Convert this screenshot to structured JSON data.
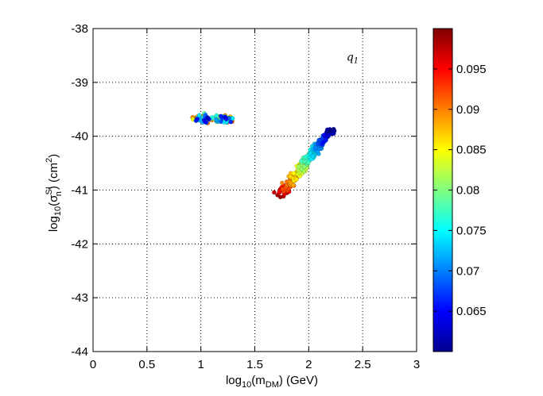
{
  "chart_data": {
    "type": "scatter",
    "xaxis": {
      "min": 0,
      "max": 3,
      "ticks": [
        0,
        0.5,
        1,
        1.5,
        2,
        2.5,
        3
      ],
      "tick_labels": [
        "0",
        "0.5",
        "1",
        "1.5",
        "2",
        "2.5",
        "3"
      ]
    },
    "yaxis": {
      "min": -44,
      "max": -38,
      "ticks": [
        -44,
        -43,
        -42,
        -41,
        -40,
        -39,
        -38
      ],
      "tick_labels": [
        "-44",
        "-43",
        "-42",
        "-41",
        "-40",
        "-39",
        "-38"
      ]
    },
    "xlabel": {
      "pre": "log",
      "sub1": "10",
      "mid": "(m",
      "sub2": "DM",
      "post": ") (GeV)"
    },
    "ylabel": {
      "pre": "log",
      "sub1": "10",
      "mid": "(σ",
      "sup": "SI",
      "sub2": "n",
      "post": ") (cm",
      "sup2": "2",
      "end": ")"
    },
    "annotation": {
      "base": "q",
      "sub": "1",
      "x": 2.35,
      "y": -38.6
    },
    "grid": true,
    "grid_style": "dotted",
    "colorbar": {
      "min": 0.06,
      "max": 0.1,
      "ticks": [
        0.065,
        0.07,
        0.075,
        0.08,
        0.085,
        0.09,
        0.095
      ],
      "tick_labels": [
        "0.065",
        "0.07",
        "0.075",
        "0.08",
        "0.085",
        "0.09",
        "0.095"
      ],
      "colormap": "jet"
    },
    "clusters": [
      {
        "description_of_shape": "small horizontal blob",
        "x_range": [
          0.92,
          1.3
        ],
        "y_center": -39.68,
        "y_spread": 0.13,
        "count": 110,
        "c_range": [
          0.063,
          0.095
        ]
      },
      {
        "description_of_shape": "diagonal band, red at low end, blue at high end",
        "x_start": 1.72,
        "y_start": -41.12,
        "x_end": 2.22,
        "y_end": -39.85,
        "width": 0.07,
        "count": 320,
        "c_start": 0.098,
        "c_end": 0.062
      }
    ]
  }
}
